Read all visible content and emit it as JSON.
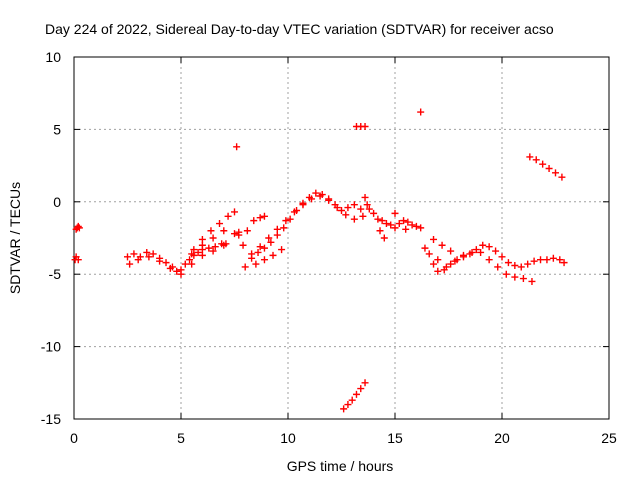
{
  "chart_data": {
    "type": "scatter",
    "title": "Day 224 of 2022, Sidereal Day-to-day VTEC variation (SDTVAR) for receiver acso",
    "xlabel": "GPS time / hours",
    "ylabel": "SDTVAR / TECUs",
    "xlim": [
      0,
      25
    ],
    "ylim": [
      -15,
      10
    ],
    "xticks": [
      0,
      5,
      10,
      15,
      20,
      25
    ],
    "yticks": [
      -15,
      -10,
      -5,
      0,
      5,
      10
    ],
    "xtick_labels": [
      "0",
      "5",
      "10",
      "15",
      "20",
      "25"
    ],
    "ytick_labels": [
      "-15",
      "-10",
      "-5",
      "0",
      "5",
      "10"
    ],
    "grid": true,
    "marker": "plus",
    "color": "#ff0000",
    "series": [
      {
        "name": "SDTVAR",
        "x": [
          0.1,
          0.15,
          0.2,
          0.25,
          0.05,
          0.1,
          0.2,
          2.5,
          2.8,
          3.1,
          3.4,
          3.7,
          4.0,
          4.3,
          4.6,
          4.8,
          5.0,
          5.2,
          5.4,
          5.6,
          5.8,
          6.0,
          6.3,
          6.6,
          6.9,
          7.1,
          2.6,
          3.0,
          3.5,
          4.0,
          4.5,
          5.0,
          5.5,
          6.0,
          6.5,
          7.0,
          5.6,
          6.0,
          6.4,
          6.8,
          7.2,
          7.5,
          5.5,
          6.0,
          6.5,
          7.0,
          7.5,
          7.7,
          7.9,
          8.1,
          8.4,
          8.7,
          8.9,
          7.7,
          7.6,
          8.0,
          8.3,
          8.6,
          8.9,
          9.2,
          9.5,
          9.8,
          10.1,
          10.4,
          10.7,
          11.0,
          11.3,
          11.6,
          11.9,
          12.2,
          12.5,
          12.8,
          13.1,
          13.4,
          13.7,
          8.3,
          8.7,
          9.1,
          9.5,
          9.9,
          10.3,
          10.7,
          11.1,
          11.5,
          11.9,
          12.3,
          12.7,
          13.1,
          13.5,
          8.5,
          8.9,
          9.3,
          9.7,
          12.6,
          12.8,
          13.0,
          13.2,
          13.4,
          13.6,
          13.2,
          13.4,
          13.6,
          13.6,
          13.8,
          14.0,
          14.2,
          14.4,
          14.6,
          14.8,
          15.0,
          15.2,
          15.4,
          15.6,
          15.8,
          16.0,
          16.2,
          14.3,
          14.5,
          15.0,
          15.5,
          16.2,
          16.4,
          16.6,
          16.8,
          17.0,
          17.3,
          17.6,
          17.9,
          18.2,
          18.5,
          18.8,
          19.1,
          19.4,
          19.7,
          20.0,
          20.3,
          20.6,
          20.9,
          21.2,
          21.5,
          21.8,
          22.1,
          22.4,
          22.7,
          22.9,
          17.0,
          17.4,
          17.8,
          18.2,
          18.6,
          19.0,
          19.4,
          19.8,
          20.2,
          20.6,
          21.0,
          21.4,
          16.8,
          17.2,
          17.6,
          21.3,
          21.6,
          21.9,
          22.2,
          22.5,
          22.8
        ],
        "y": [
          -1.9,
          -1.8,
          -1.7,
          -1.8,
          -4.0,
          -3.8,
          -4.0,
          -3.8,
          -3.6,
          -3.8,
          -3.5,
          -3.6,
          -3.9,
          -4.2,
          -4.5,
          -4.8,
          -4.7,
          -4.3,
          -4.0,
          -3.7,
          -3.5,
          -3.3,
          -3.2,
          -3.1,
          -2.9,
          -2.9,
          -4.3,
          -4.0,
          -3.8,
          -4.1,
          -4.6,
          -5.0,
          -4.3,
          -3.7,
          -3.4,
          -3.0,
          -3.3,
          -2.6,
          -2.0,
          -1.5,
          -1.0,
          -0.7,
          -3.6,
          -3.0,
          -2.5,
          -2.0,
          -2.2,
          -2.3,
          -3.0,
          -2.0,
          -1.3,
          -1.1,
          -1.0,
          -2.1,
          3.8,
          -4.5,
          -3.9,
          -3.5,
          -3.2,
          -2.8,
          -2.3,
          -1.8,
          -1.2,
          -0.6,
          -0.1,
          0.3,
          0.6,
          0.5,
          0.2,
          -0.2,
          -0.6,
          -0.4,
          -0.2,
          -0.5,
          -0.2,
          -3.6,
          -3.1,
          -2.5,
          -1.9,
          -1.3,
          -0.7,
          -0.2,
          0.2,
          0.4,
          0.1,
          -0.4,
          -0.9,
          -1.2,
          -1.0,
          -4.3,
          -4.0,
          -3.7,
          -3.3,
          -14.3,
          -14.0,
          -13.7,
          -13.3,
          -12.9,
          -12.5,
          5.2,
          5.2,
          5.2,
          0.3,
          -0.5,
          -0.8,
          -1.2,
          -1.3,
          -1.5,
          -1.6,
          -1.8,
          -1.5,
          -1.3,
          -1.4,
          -1.6,
          -1.7,
          -1.8,
          -2.0,
          -2.5,
          -0.8,
          -1.9,
          6.2,
          -3.2,
          -3.6,
          -4.3,
          -4.0,
          -4.7,
          -4.3,
          -4.0,
          -3.7,
          -3.6,
          -3.3,
          -3.0,
          -3.1,
          -3.4,
          -3.8,
          -4.2,
          -4.4,
          -4.5,
          -4.3,
          -4.1,
          -4.0,
          -4.0,
          -3.9,
          -4.0,
          -4.2,
          -4.8,
          -4.5,
          -4.1,
          -3.8,
          -3.5,
          -3.5,
          -4.0,
          -4.5,
          -5.0,
          -5.2,
          -5.3,
          -5.5,
          -2.6,
          -3.0,
          -3.4,
          3.1,
          2.9,
          2.6,
          2.3,
          2.0,
          1.7
        ]
      }
    ]
  }
}
